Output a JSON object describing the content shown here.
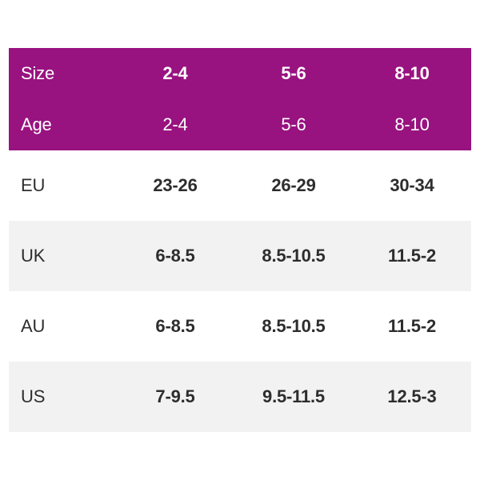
{
  "colors": {
    "page_bg": "#ffffff",
    "header_bg": "#981380",
    "header_text": "#ffffff",
    "stripe_bg": "#f2f2f2",
    "body_text": "#2d2d2d"
  },
  "chart_data": {
    "type": "table",
    "title": "",
    "legend": "none",
    "grid": "off",
    "header_rows": [
      {
        "label": "Size",
        "values": [
          "2-4",
          "5-6",
          "8-10"
        ]
      },
      {
        "label": "Age",
        "values": [
          "2-4",
          "5-6",
          "8-10"
        ]
      }
    ],
    "body_rows": [
      {
        "label": "EU",
        "values": [
          "23-26",
          "26-29",
          "30-34"
        ]
      },
      {
        "label": "UK",
        "values": [
          "6-8.5",
          "8.5-10.5",
          "11.5-2"
        ]
      },
      {
        "label": "AU",
        "values": [
          "6-8.5",
          "8.5-10.5",
          "11.5-2"
        ]
      },
      {
        "label": "US",
        "values": [
          "7-9.5",
          "9.5-11.5",
          "12.5-3"
        ]
      }
    ]
  }
}
